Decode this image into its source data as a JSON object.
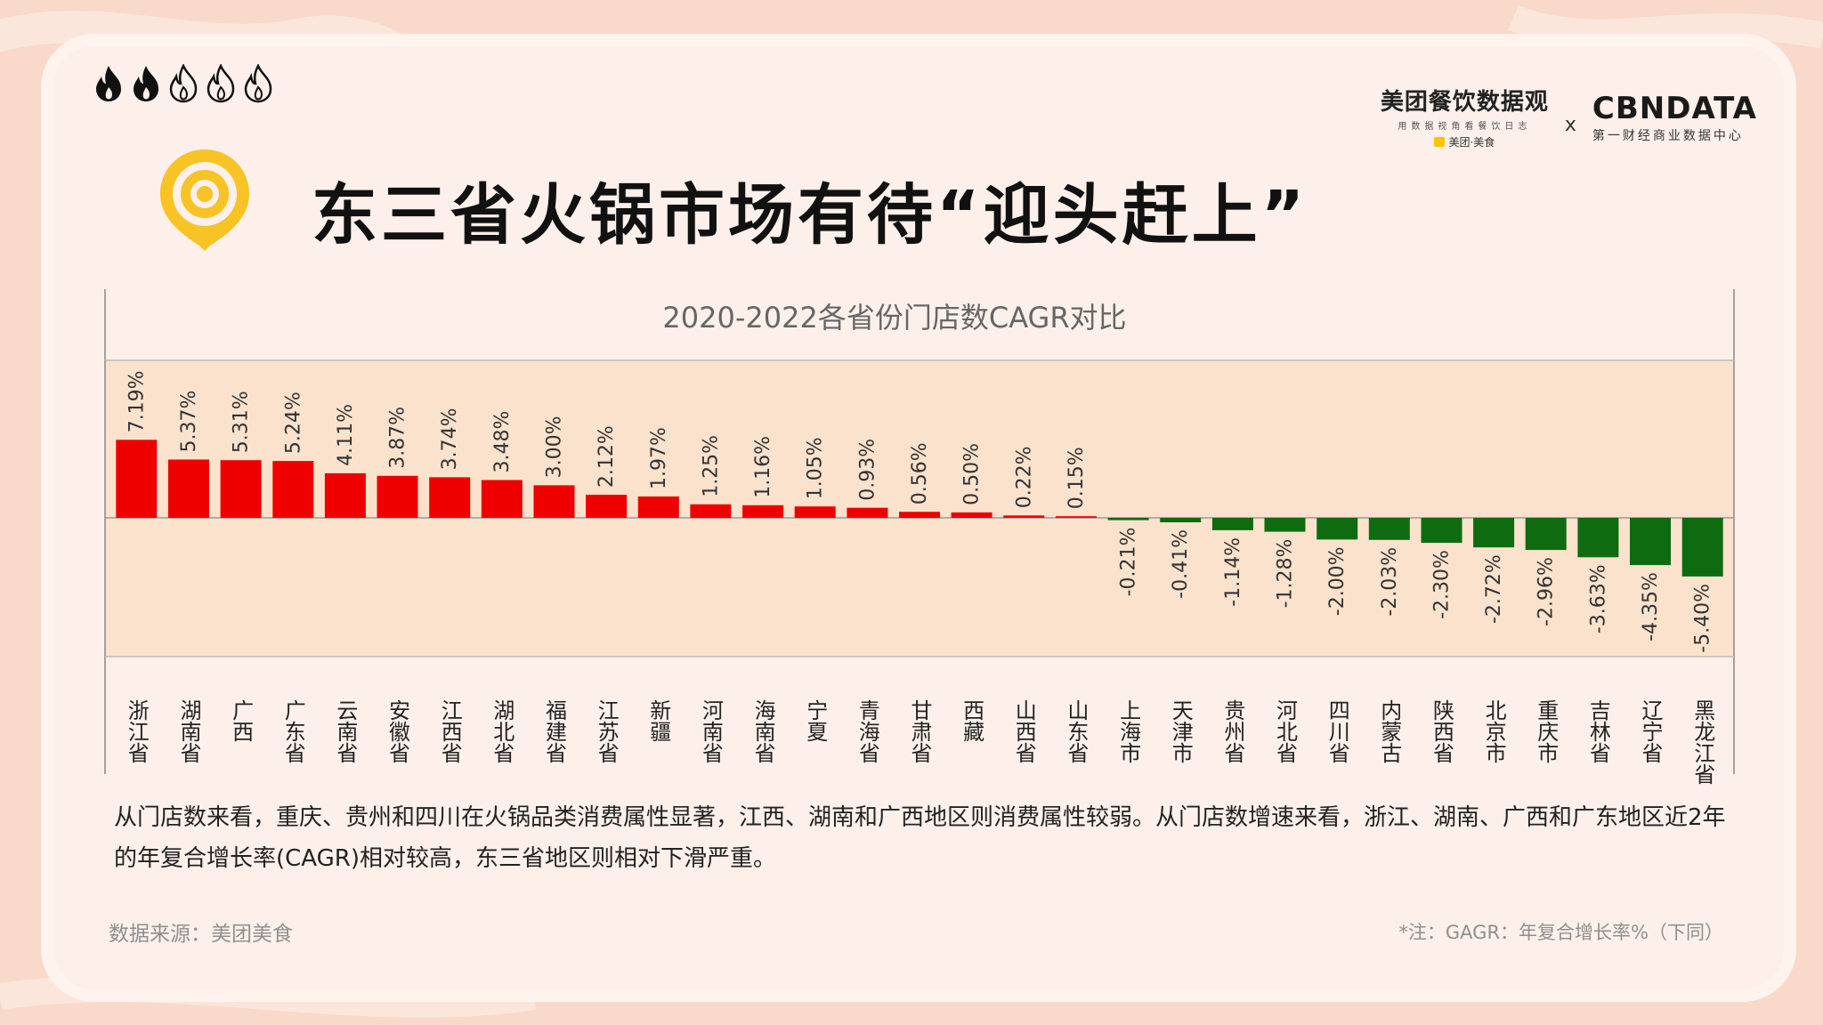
{
  "header": {
    "title": "东三省火锅市场有待“迎头赶上”",
    "fire_rating": {
      "filled": 2,
      "total": 5
    }
  },
  "logos": {
    "meituan_main": "美团餐饮数据观",
    "meituan_tagline": "用数据视角看餐饮日志",
    "meituan_sub": "美团·美食",
    "separator": "x",
    "cbn_main": "CBNDATA",
    "cbn_sub": "第一财经商业数据中心"
  },
  "chart_data": {
    "type": "bar",
    "title": "2020-2022各省份门店数CAGR对比",
    "categories": [
      "浙江省",
      "湖南省",
      "广西",
      "广东省",
      "云南省",
      "安徽省",
      "江西省",
      "湖北省",
      "福建省",
      "江苏省",
      "新疆",
      "河南省",
      "海南省",
      "宁夏",
      "青海省",
      "甘肃省",
      "西藏",
      "山西省",
      "山东省",
      "上海市",
      "天津市",
      "贵州省",
      "河北省",
      "四川省",
      "内蒙古",
      "陕西省",
      "北京市",
      "重庆市",
      "吉林省",
      "辽宁省",
      "黑龙江省"
    ],
    "values": [
      7.19,
      5.37,
      5.31,
      5.24,
      4.11,
      3.87,
      3.74,
      3.48,
      3.0,
      2.12,
      1.97,
      1.25,
      1.16,
      1.05,
      0.93,
      0.56,
      0.5,
      0.22,
      0.15,
      -0.21,
      -0.41,
      -1.14,
      -1.28,
      -2.0,
      -2.03,
      -2.3,
      -2.72,
      -2.96,
      -3.63,
      -4.35,
      -5.4
    ],
    "labels": [
      "7.19%",
      "5.37%",
      "5.31%",
      "5.24%",
      "4.11%",
      "3.87%",
      "3.74%",
      "3.48%",
      "3.00%",
      "2.12%",
      "1.97%",
      "1.25%",
      "1.16%",
      "1.05%",
      "0.93%",
      "0.56%",
      "0.50%",
      "0.22%",
      "0.15%",
      "-0.21%",
      "-0.41%",
      "-1.14%",
      "-1.28%",
      "-2.00%",
      "-2.03%",
      "-2.30%",
      "-2.72%",
      "-2.96%",
      "-3.63%",
      "-4.35%",
      "-5.40%"
    ],
    "unit": "%",
    "colors": {
      "positive": "#ee0000",
      "negative": "#0f6b0f"
    }
  },
  "description": "从门店数来看，重庆、贵州和四川在火锅品类消费属性显著，江西、湖南和广西地区则消费属性较弱。从门店数增速来看，浙江、湖南、广西和广东地区近2年的年复合增长率(CAGR)相对较高，东三省地区则相对下滑严重。",
  "footer": {
    "source": "数据来源：美团美食",
    "note": "*注：GAGR：年复合增长率%（下同）"
  },
  "colors": {
    "background": "#f9d9c9",
    "card": "#fdf0ea",
    "flame": "#111111",
    "accent_yellow": "#f7c325"
  }
}
